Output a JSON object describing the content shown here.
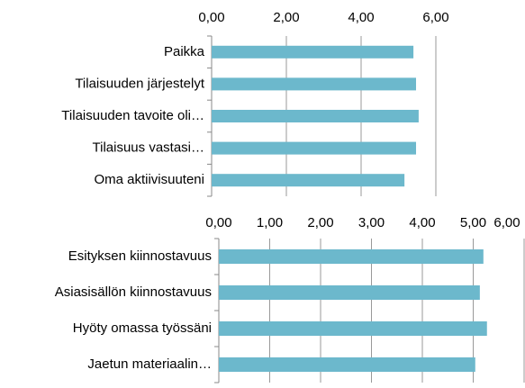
{
  "chart_data": [
    {
      "type": "bar",
      "orientation": "horizontal",
      "categories": [
        "Paikka",
        "Tilaisuuden järjestelyt",
        "Tilaisuuden tavoite oli…",
        "Tilaisuus vastasi…",
        "Oma aktiivisuuteni"
      ],
      "values": [
        5.4,
        5.47,
        5.54,
        5.47,
        5.16
      ],
      "color": "#6cb8cc",
      "xlim": [
        0,
        6
      ],
      "xticks": [
        {
          "value": 0,
          "label": "0,00"
        },
        {
          "value": 2,
          "label": "2,00"
        },
        {
          "value": 4,
          "label": "4,00"
        },
        {
          "value": 6,
          "label": "6,00"
        }
      ],
      "grid": true
    },
    {
      "type": "bar",
      "orientation": "horizontal",
      "categories": [
        "Esityksen kiinnostavuus",
        "Asiasisällön kiinnostavuus",
        "Hyöty omassa työssäni",
        "Jaetun materiaalin…"
      ],
      "values": [
        5.2,
        5.13,
        5.27,
        5.04
      ],
      "color": "#6cb8cc",
      "xlim": [
        0,
        6
      ],
      "xticks": [
        {
          "value": 0,
          "label": "0,00"
        },
        {
          "value": 1,
          "label": "1,00"
        },
        {
          "value": 2,
          "label": "2,00"
        },
        {
          "value": 3,
          "label": "3,00"
        },
        {
          "value": 4,
          "label": "4,00"
        },
        {
          "value": 5,
          "label": "5,00"
        },
        {
          "value": 6,
          "label": "6,00"
        }
      ],
      "grid": true
    }
  ]
}
